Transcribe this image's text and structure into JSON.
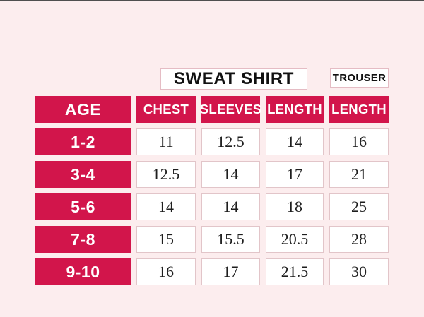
{
  "colors": {
    "background": "#fcedee",
    "accent_red": "#d2154b",
    "cell_border": "#e2c5c9",
    "box_border": "#e5bcc4",
    "top_line": "#4f4f4f"
  },
  "sections": {
    "sweatshirt_label": "SWEAT SHIRT",
    "trouser_label": "TROUSER"
  },
  "chart_data": {
    "type": "table",
    "columns": [
      "AGE",
      "CHEST",
      "SLEEVES",
      "LENGTH",
      "LENGTH"
    ],
    "header_groups": [
      {
        "label": "SWEAT SHIRT",
        "columns": [
          "CHEST",
          "SLEEVES",
          "LENGTH"
        ]
      },
      {
        "label": "TROUSER",
        "columns": [
          "LENGTH"
        ]
      }
    ],
    "rows": [
      {
        "age": "1-2",
        "chest": "11",
        "sleeves": "12.5",
        "length": "14",
        "trouser_length": "16"
      },
      {
        "age": "3-4",
        "chest": "12.5",
        "sleeves": "14",
        "length": "17",
        "trouser_length": "21"
      },
      {
        "age": "5-6",
        "chest": "14",
        "sleeves": "14",
        "length": "18",
        "trouser_length": "25"
      },
      {
        "age": "7-8",
        "chest": "15",
        "sleeves": "15.5",
        "length": "20.5",
        "trouser_length": "28"
      },
      {
        "age": "9-10",
        "chest": "16",
        "sleeves": "17",
        "length": "21.5",
        "trouser_length": "30"
      }
    ]
  }
}
